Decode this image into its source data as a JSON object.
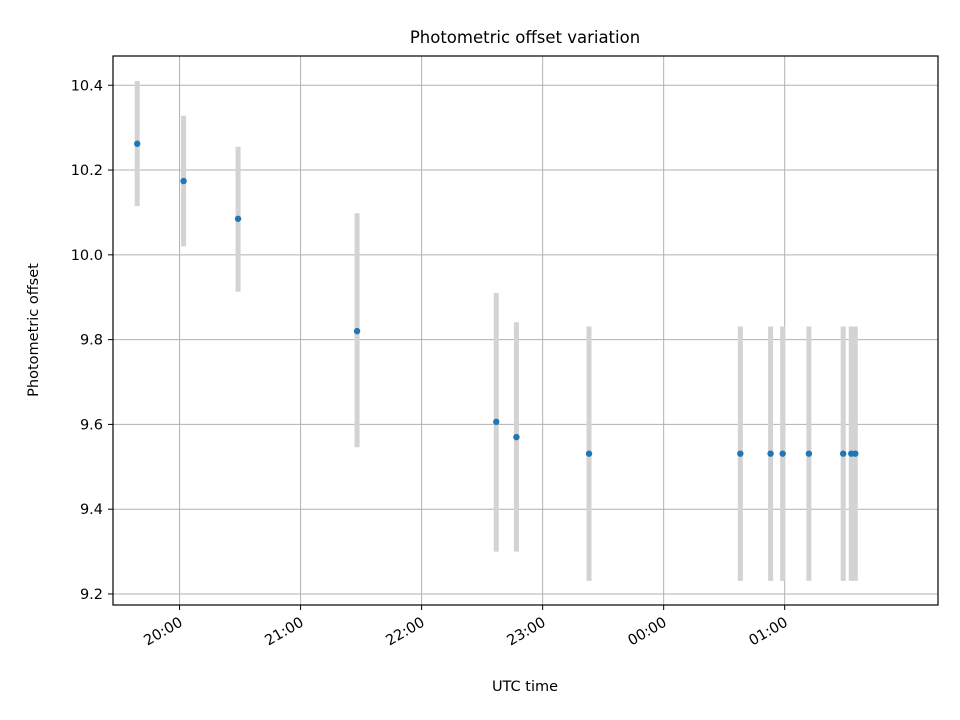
{
  "chart_data": {
    "type": "scatter",
    "title": "Photometric offset variation",
    "xlabel": "UTC time",
    "ylabel": "Photometric offset",
    "x_axis": {
      "type": "time",
      "range": [
        "19:27",
        "02:16"
      ],
      "ticks": [
        "20:00",
        "21:00",
        "22:00",
        "23:00",
        "00:00",
        "01:00"
      ]
    },
    "y_axis": {
      "range": [
        9.174,
        10.469
      ],
      "ticks": [
        9.2,
        9.4,
        9.6,
        9.8,
        10.0,
        10.2,
        10.4
      ]
    },
    "grid": true,
    "legend": "none",
    "marker_color": "#1f77b4",
    "errorbar_color": "#d3d3d3",
    "points": [
      {
        "x": "19:39",
        "y": 10.262,
        "ylow": 10.115,
        "yhigh": 10.41
      },
      {
        "x": "20:02",
        "y": 10.174,
        "ylow": 10.02,
        "yhigh": 10.328
      },
      {
        "x": "20:29",
        "y": 10.085,
        "ylow": 9.913,
        "yhigh": 10.255
      },
      {
        "x": "21:28",
        "y": 9.82,
        "ylow": 9.546,
        "yhigh": 10.098
      },
      {
        "x": "22:37",
        "y": 9.606,
        "ylow": 9.3,
        "yhigh": 9.91
      },
      {
        "x": "22:47",
        "y": 9.57,
        "ylow": 9.3,
        "yhigh": 9.841
      },
      {
        "x": "23:23",
        "y": 9.531,
        "ylow": 9.231,
        "yhigh": 9.831
      },
      {
        "x": "00:38",
        "y": 9.531,
        "ylow": 9.231,
        "yhigh": 9.831
      },
      {
        "x": "00:53",
        "y": 9.531,
        "ylow": 9.231,
        "yhigh": 9.831
      },
      {
        "x": "00:59",
        "y": 9.531,
        "ylow": 9.231,
        "yhigh": 9.831
      },
      {
        "x": "01:12",
        "y": 9.531,
        "ylow": 9.231,
        "yhigh": 9.831
      },
      {
        "x": "01:29",
        "y": 9.531,
        "ylow": 9.231,
        "yhigh": 9.831
      },
      {
        "x": "01:33",
        "y": 9.531,
        "ylow": 9.231,
        "yhigh": 9.831
      },
      {
        "x": "01:35",
        "y": 9.531,
        "ylow": 9.231,
        "yhigh": 9.831
      }
    ]
  }
}
